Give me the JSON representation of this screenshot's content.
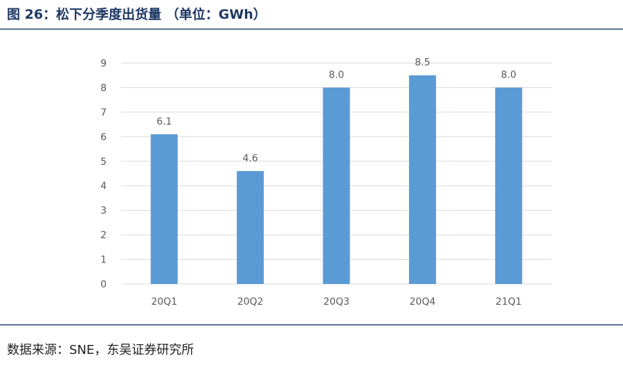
{
  "figure": {
    "title": "图 26：松下分季度出货量 （单位：GWh）",
    "source": "数据来源：SNE，东吴证券研究所"
  },
  "colors": {
    "bar": "#5b9bd5",
    "title": "#1f3864",
    "rule": "#5b6f8f",
    "grid": "#d9d9d9",
    "tick": "#595959"
  },
  "chart_data": {
    "type": "bar",
    "title": "",
    "xlabel": "",
    "ylabel": "",
    "categories": [
      "20Q1",
      "20Q2",
      "20Q3",
      "20Q4",
      "21Q1"
    ],
    "values": [
      6.1,
      4.6,
      8.0,
      8.5,
      8.0
    ],
    "data_labels": [
      "6.1",
      "4.6",
      "8.0",
      "8.5",
      "8.0"
    ],
    "yticks": [
      "0",
      "1",
      "2",
      "3",
      "4",
      "5",
      "6",
      "7",
      "8",
      "9"
    ],
    "ylim": [
      0,
      9
    ],
    "grid": true,
    "legend": "none"
  }
}
